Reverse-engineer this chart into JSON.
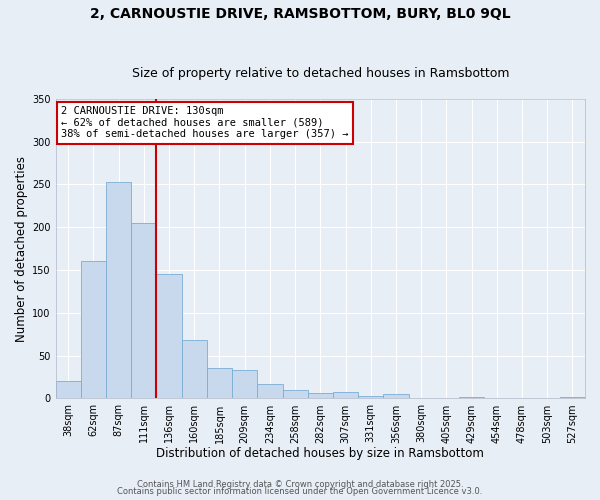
{
  "title": "2, CARNOUSTIE DRIVE, RAMSBOTTOM, BURY, BL0 9QL",
  "subtitle": "Size of property relative to detached houses in Ramsbottom",
  "xlabel": "Distribution of detached houses by size in Ramsbottom",
  "ylabel": "Number of detached properties",
  "bar_color": "#c9d9ed",
  "bar_edge_color": "#7aaed4",
  "background_color": "#e8eef6",
  "grid_color": "#ffffff",
  "categories": [
    "38sqm",
    "62sqm",
    "87sqm",
    "111sqm",
    "136sqm",
    "160sqm",
    "185sqm",
    "209sqm",
    "234sqm",
    "258sqm",
    "282sqm",
    "307sqm",
    "331sqm",
    "356sqm",
    "380sqm",
    "405sqm",
    "429sqm",
    "454sqm",
    "478sqm",
    "503sqm",
    "527sqm"
  ],
  "values": [
    20,
    160,
    253,
    205,
    145,
    68,
    35,
    33,
    17,
    10,
    6,
    7,
    3,
    5,
    0,
    0,
    2,
    0,
    0,
    0,
    2
  ],
  "vline_color": "#cc0000",
  "annotation_title": "2 CARNOUSTIE DRIVE: 130sqm",
  "annotation_line2": "← 62% of detached houses are smaller (589)",
  "annotation_line3": "38% of semi-detached houses are larger (357) →",
  "annotation_box_color": "#ffffff",
  "annotation_box_edge": "#cc0000",
  "ylim": [
    0,
    350
  ],
  "yticks": [
    0,
    50,
    100,
    150,
    200,
    250,
    300,
    350
  ],
  "footer1": "Contains HM Land Registry data © Crown copyright and database right 2025.",
  "footer2": "Contains public sector information licensed under the Open Government Licence v3.0.",
  "title_fontsize": 10,
  "subtitle_fontsize": 9,
  "axis_label_fontsize": 8.5,
  "tick_fontsize": 7,
  "annotation_fontsize": 7.5,
  "footer_fontsize": 6
}
